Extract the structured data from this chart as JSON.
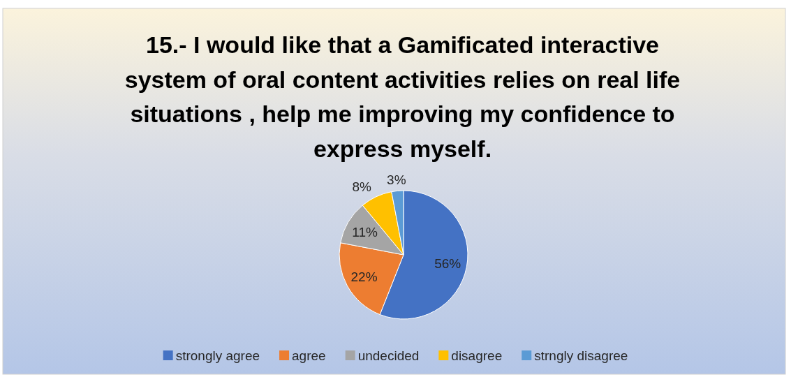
{
  "chart_data": {
    "type": "pie",
    "title": "15.- I would like that a Gamificated interactive system of oral content activities relies on real life situations , help me improving my confidence to express myself.",
    "categories": [
      "strongly agree",
      "agree",
      "undecided",
      "disagree",
      "strngly disagree"
    ],
    "values": [
      56,
      22,
      11,
      8,
      3
    ],
    "colors": [
      "#4472c4",
      "#ed7d31",
      "#a5a5a5",
      "#ffc000",
      "#5b9bd5"
    ],
    "value_labels": [
      "56%",
      "22%",
      "11%",
      "8%",
      "3%"
    ],
    "legend": "bottom"
  }
}
